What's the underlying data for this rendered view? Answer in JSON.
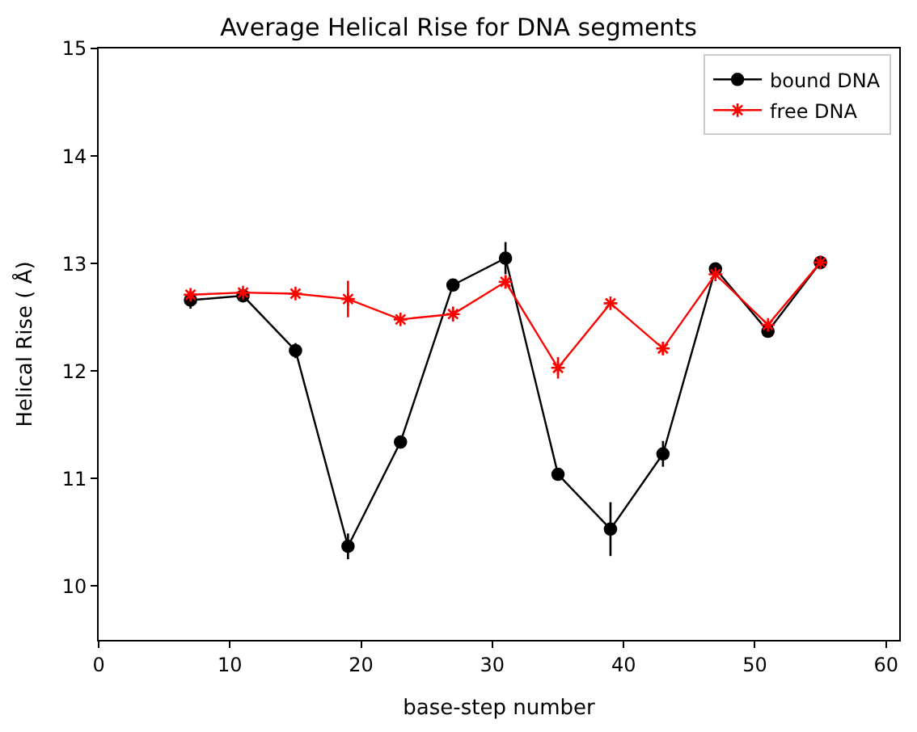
{
  "chart_data": {
    "type": "line",
    "title": "Average Helical Rise for DNA segments",
    "xlabel": "base-step number",
    "ylabel": "Helical Rise ( Å)",
    "x": [
      7,
      11,
      15,
      19,
      23,
      27,
      31,
      35,
      39,
      43,
      47,
      51,
      55
    ],
    "series": [
      {
        "name": "bound DNA",
        "color": "#000000",
        "marker": "circle",
        "values": [
          12.66,
          12.7,
          12.19,
          10.37,
          11.34,
          12.8,
          13.05,
          11.04,
          10.53,
          11.23,
          12.95,
          12.37,
          13.01
        ],
        "errors": [
          0.08,
          null,
          0.07,
          0.12,
          null,
          null,
          0.15,
          null,
          0.25,
          0.12,
          null,
          null,
          null
        ]
      },
      {
        "name": "free DNA",
        "color": "#ff0000",
        "marker": "cross",
        "values": [
          12.71,
          12.73,
          12.72,
          12.67,
          12.48,
          12.53,
          12.83,
          12.03,
          12.63,
          12.21,
          12.9,
          12.43,
          13.01
        ],
        "errors": [
          0.04,
          0.03,
          null,
          0.17,
          null,
          0.07,
          0.06,
          0.1,
          null,
          0.06,
          null,
          null,
          null
        ]
      }
    ],
    "xlim": [
      0,
      61
    ],
    "xticks": [
      0,
      10,
      20,
      30,
      40,
      50,
      60
    ],
    "ylim": [
      9.5,
      15
    ],
    "yticks": [
      10,
      11,
      12,
      13,
      14,
      15
    ],
    "legend": "top right",
    "line_style": "solid"
  }
}
